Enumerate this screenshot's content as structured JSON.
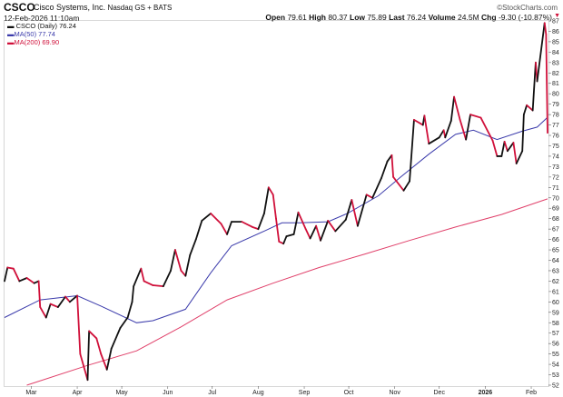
{
  "header": {
    "symbol": "CSCO",
    "company": "Cisco Systems, Inc.",
    "exchange": "Nasdaq GS + BATS",
    "datetime": "12-Feb-2026 11:10am",
    "brand": "©StockCharts.com",
    "quote": {
      "open_label": "Open",
      "open": "79.61",
      "high_label": "High",
      "high": "80.37",
      "low_label": "Low",
      "low": "75.89",
      "last_label": "Last",
      "last": "76.24",
      "volume_label": "Volume",
      "volume": "24.5M",
      "chg_label": "Chg",
      "chg": "-9.30 (-10.87%)",
      "down_arrow": "▼"
    }
  },
  "chart_data": {
    "type": "line",
    "title": "",
    "x_range": [
      "2025-02-11",
      "2026-02-12"
    ],
    "ylim": [
      52,
      87
    ],
    "y_ticks": [
      52,
      53,
      54,
      55,
      56,
      57,
      58,
      59,
      60,
      61,
      62,
      63,
      64,
      65,
      66,
      67,
      68,
      69,
      70,
      71,
      72,
      73,
      74,
      75,
      76,
      77,
      78,
      79,
      80,
      81,
      82,
      83,
      84,
      85,
      86,
      87
    ],
    "y_axis_side": "right",
    "x_ticks": [
      {
        "label": "Mar",
        "date": "2025-03-01"
      },
      {
        "label": "Apr",
        "date": "2025-04-01"
      },
      {
        "label": "May",
        "date": "2025-05-01"
      },
      {
        "label": "Jun",
        "date": "2025-06-01"
      },
      {
        "label": "Jul",
        "date": "2025-07-01"
      },
      {
        "label": "Aug",
        "date": "2025-08-01"
      },
      {
        "label": "Sep",
        "date": "2025-09-01"
      },
      {
        "label": "Oct",
        "date": "2025-10-01"
      },
      {
        "label": "Nov",
        "date": "2025-11-01"
      },
      {
        "label": "Dec",
        "date": "2025-12-01"
      },
      {
        "label": "2026",
        "date": "2026-01-01",
        "bold": true
      },
      {
        "label": "Feb",
        "date": "2026-02-01"
      }
    ],
    "grid": false,
    "legend_position": "top-left",
    "up_color": "#111111",
    "down_color": "#d0103a",
    "series": [
      {
        "name": "CSCO (Daily) 76.24",
        "color": "#111111",
        "points": [
          [
            "2025-02-11",
            62.0
          ],
          [
            "2025-02-13",
            63.3
          ],
          [
            "2025-02-17",
            63.2
          ],
          [
            "2025-02-21",
            62.0
          ],
          [
            "2025-02-26",
            62.3
          ],
          [
            "2025-03-03",
            61.8
          ],
          [
            "2025-03-06",
            62.0
          ],
          [
            "2025-03-07",
            59.5
          ],
          [
            "2025-03-11",
            58.5
          ],
          [
            "2025-03-14",
            59.8
          ],
          [
            "2025-03-19",
            59.5
          ],
          [
            "2025-03-24",
            60.5
          ],
          [
            "2025-03-27",
            60.0
          ],
          [
            "2025-04-01",
            60.6
          ],
          [
            "2025-04-03",
            55.0
          ],
          [
            "2025-04-07",
            53.0
          ],
          [
            "2025-04-08",
            52.5
          ],
          [
            "2025-04-09",
            57.2
          ],
          [
            "2025-04-14",
            56.5
          ],
          [
            "2025-04-17",
            55.0
          ],
          [
            "2025-04-21",
            53.5
          ],
          [
            "2025-04-24",
            55.5
          ],
          [
            "2025-04-30",
            57.5
          ],
          [
            "2025-05-05",
            58.5
          ],
          [
            "2025-05-08",
            60.0
          ],
          [
            "2025-05-09",
            61.5
          ],
          [
            "2025-05-14",
            63.2
          ],
          [
            "2025-05-16",
            62.0
          ],
          [
            "2025-05-22",
            61.6
          ],
          [
            "2025-05-29",
            61.5
          ],
          [
            "2025-06-03",
            63.0
          ],
          [
            "2025-06-06",
            65.0
          ],
          [
            "2025-06-10",
            63.0
          ],
          [
            "2025-06-13",
            62.5
          ],
          [
            "2025-06-16",
            64.5
          ],
          [
            "2025-06-20",
            66.0
          ],
          [
            "2025-06-24",
            67.8
          ],
          [
            "2025-06-30",
            68.5
          ],
          [
            "2025-07-07",
            67.5
          ],
          [
            "2025-07-11",
            66.5
          ],
          [
            "2025-07-14",
            67.7
          ],
          [
            "2025-07-21",
            67.7
          ],
          [
            "2025-07-28",
            67.2
          ],
          [
            "2025-08-01",
            67.0
          ],
          [
            "2025-08-05",
            68.5
          ],
          [
            "2025-08-08",
            71.0
          ],
          [
            "2025-08-11",
            70.3
          ],
          [
            "2025-08-13",
            68.0
          ],
          [
            "2025-08-15",
            65.8
          ],
          [
            "2025-08-18",
            65.6
          ],
          [
            "2025-08-20",
            66.3
          ],
          [
            "2025-08-25",
            66.5
          ],
          [
            "2025-08-28",
            68.6
          ],
          [
            "2025-09-02",
            67.0
          ],
          [
            "2025-09-05",
            66.1
          ],
          [
            "2025-09-09",
            67.3
          ],
          [
            "2025-09-12",
            65.9
          ],
          [
            "2025-09-17",
            67.8
          ],
          [
            "2025-09-22",
            66.8
          ],
          [
            "2025-09-29",
            67.9
          ],
          [
            "2025-10-03",
            69.8
          ],
          [
            "2025-10-07",
            67.3
          ],
          [
            "2025-10-13",
            70.3
          ],
          [
            "2025-10-17",
            70.0
          ],
          [
            "2025-10-23",
            71.9
          ],
          [
            "2025-10-27",
            73.5
          ],
          [
            "2025-10-30",
            74.1
          ],
          [
            "2025-10-31",
            72.0
          ],
          [
            "2025-11-07",
            70.7
          ],
          [
            "2025-11-11",
            71.6
          ],
          [
            "2025-11-14",
            77.5
          ],
          [
            "2025-11-20",
            77.0
          ],
          [
            "2025-11-21",
            77.9
          ],
          [
            "2025-11-24",
            75.2
          ],
          [
            "2025-12-01",
            75.8
          ],
          [
            "2025-12-04",
            76.5
          ],
          [
            "2025-12-05",
            75.8
          ],
          [
            "2025-12-09",
            77.4
          ],
          [
            "2025-12-11",
            79.7
          ],
          [
            "2025-12-15",
            77.5
          ],
          [
            "2025-12-19",
            75.6
          ],
          [
            "2025-12-22",
            78.0
          ],
          [
            "2025-12-29",
            77.7
          ],
          [
            "2026-01-06",
            75.5
          ],
          [
            "2026-01-09",
            74.0
          ],
          [
            "2026-01-12",
            74.0
          ],
          [
            "2026-01-14",
            75.4
          ],
          [
            "2026-01-16",
            74.5
          ],
          [
            "2026-01-20",
            75.3
          ],
          [
            "2026-01-22",
            73.3
          ],
          [
            "2026-01-26",
            74.5
          ],
          [
            "2026-01-27",
            78.0
          ],
          [
            "2026-01-29",
            78.9
          ],
          [
            "2026-02-02",
            78.4
          ],
          [
            "2026-02-04",
            83.0
          ],
          [
            "2026-02-05",
            81.2
          ],
          [
            "2026-02-10",
            86.8
          ],
          [
            "2026-02-11",
            85.7
          ],
          [
            "2026-02-12",
            76.24
          ]
        ]
      },
      {
        "name": "MA(50) 77.74",
        "color": "#3b3bab",
        "points": [
          [
            "2025-02-11",
            58.5
          ],
          [
            "2025-03-07",
            60.2
          ],
          [
            "2025-04-01",
            60.6
          ],
          [
            "2025-04-17",
            59.6
          ],
          [
            "2025-05-11",
            58.0
          ],
          [
            "2025-05-22",
            58.2
          ],
          [
            "2025-06-13",
            59.3
          ],
          [
            "2025-06-30",
            62.8
          ],
          [
            "2025-07-14",
            65.4
          ],
          [
            "2025-08-05",
            66.8
          ],
          [
            "2025-08-17",
            67.6
          ],
          [
            "2025-08-29",
            67.6
          ],
          [
            "2025-09-17",
            67.7
          ],
          [
            "2025-09-30",
            68.5
          ],
          [
            "2025-10-21",
            70.2
          ],
          [
            "2025-11-05",
            72.0
          ],
          [
            "2025-11-24",
            74.2
          ],
          [
            "2025-12-12",
            76.1
          ],
          [
            "2025-12-24",
            76.5
          ],
          [
            "2026-01-09",
            75.6
          ],
          [
            "2026-01-26",
            76.4
          ],
          [
            "2026-02-05",
            76.8
          ],
          [
            "2026-02-12",
            77.74
          ]
        ]
      },
      {
        "name": "MA(200) 69.90",
        "color": "#e0406a",
        "points": [
          [
            "2025-02-26",
            52.0
          ],
          [
            "2025-04-08",
            53.9
          ],
          [
            "2025-05-11",
            55.3
          ],
          [
            "2025-06-10",
            57.6
          ],
          [
            "2025-07-11",
            60.2
          ],
          [
            "2025-08-11",
            61.8
          ],
          [
            "2025-09-11",
            63.3
          ],
          [
            "2025-10-12",
            64.6
          ],
          [
            "2025-11-11",
            65.9
          ],
          [
            "2025-12-12",
            67.2
          ],
          [
            "2026-01-12",
            68.4
          ],
          [
            "2026-02-12",
            69.9
          ]
        ]
      }
    ]
  }
}
